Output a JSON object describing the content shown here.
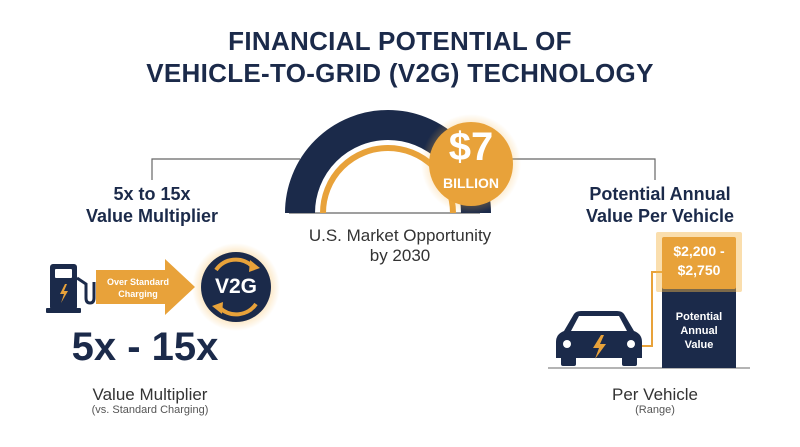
{
  "title": {
    "line1": "FINANCIAL POTENTIAL OF",
    "line2": "VEHICLE-TO-GRID (V2G) TECHNOLOGY"
  },
  "center": {
    "amount": "$7",
    "unit": "BILLION",
    "caption_line1": "U.S. Market Opportunity",
    "caption_line2": "by 2030"
  },
  "left": {
    "heading_line1": "5x to 15x",
    "heading_line2": "Value Multiplier",
    "arrow_label_line1": "Over Standard",
    "arrow_label_line2": "Charging",
    "badge": "V2G",
    "big_value": "5x - 15x",
    "caption": "Value Multiplier",
    "subcaption": "(vs. Standard Charging)"
  },
  "right": {
    "heading_line1": "Potential Annual",
    "heading_line2": "Value Per Vehicle",
    "range_line1": "$2,200 -",
    "range_line2": "$2,750",
    "bar_line1": "Potential",
    "bar_line2": "Annual",
    "bar_line3": "Value",
    "caption": "Per Vehicle",
    "subcaption": "(Range)"
  },
  "colors": {
    "navy": "#1b2a4a",
    "orange": "#e8a23a"
  }
}
